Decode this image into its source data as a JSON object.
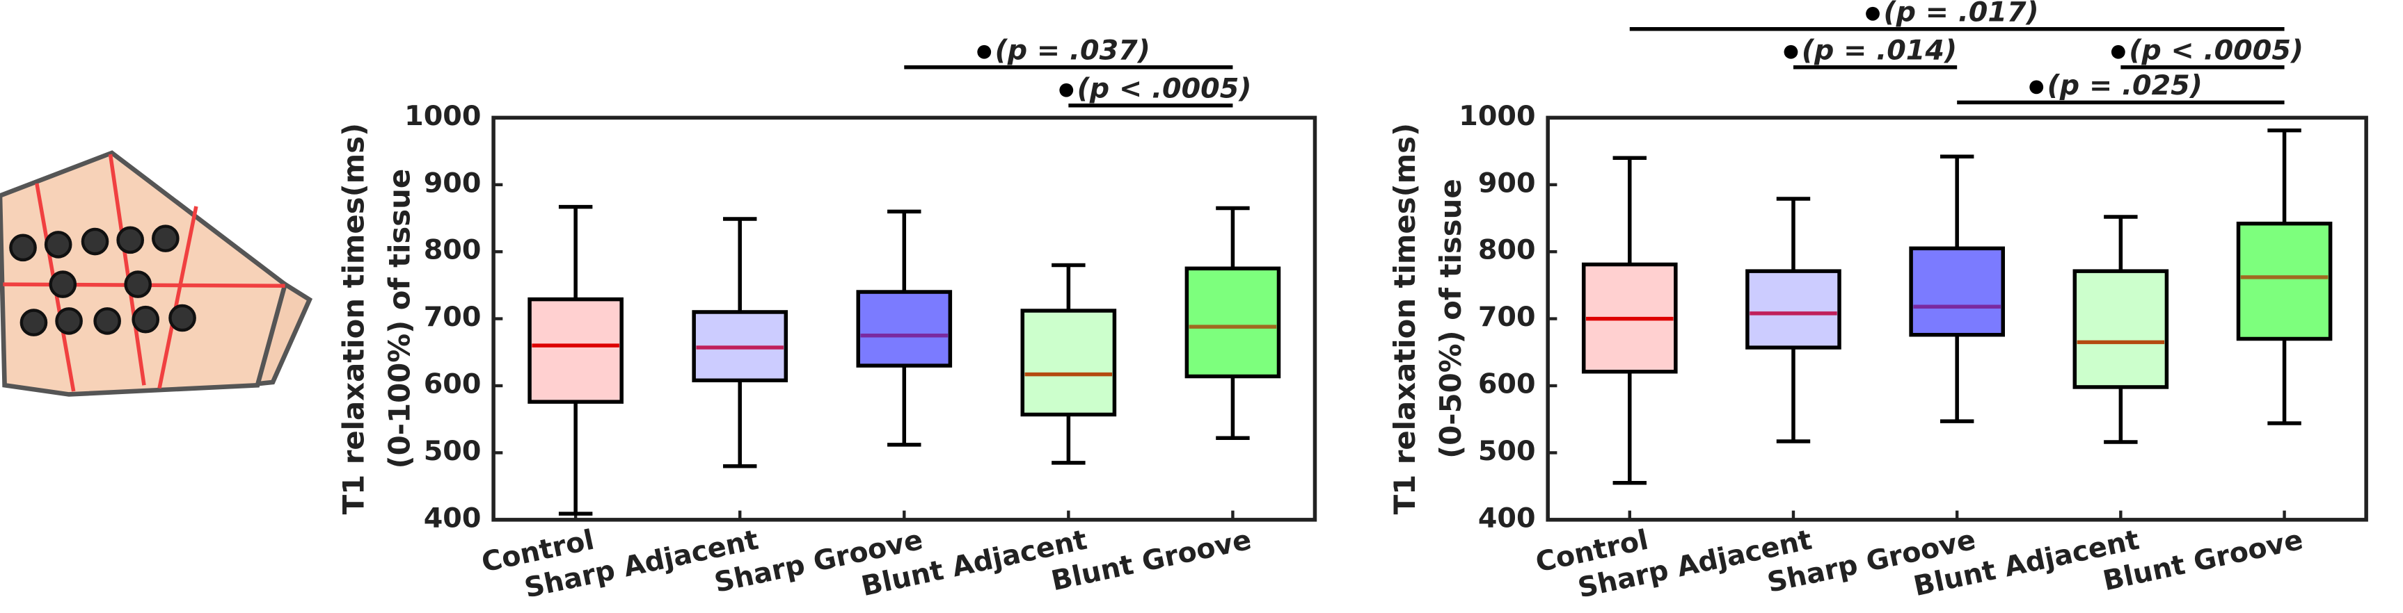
{
  "chart_data": [
    {
      "type": "box",
      "ylabel": [
        "T1 relaxation times(ms)",
        "(0-100%) of tissue"
      ],
      "categories": [
        "Control",
        "Sharp Adjacent",
        "Sharp Groove",
        "Blunt Adjacent",
        "Blunt Groove"
      ],
      "colors": [
        "#ffd0d0",
        "#ccccff",
        "#7b7bff",
        "#ccffcc",
        "#7dff7d"
      ],
      "median_colors": [
        "#dd0000",
        "#c0205a",
        "#7a2aa0",
        "#b44a10",
        "#a06a20"
      ],
      "boxes": [
        {
          "min": 409,
          "q1": 576,
          "median": 660,
          "q3": 729,
          "max": 867
        },
        {
          "min": 480,
          "q1": 608,
          "median": 657,
          "q3": 710,
          "max": 849
        },
        {
          "min": 512,
          "q1": 630,
          "median": 675,
          "q3": 740,
          "max": 860
        },
        {
          "min": 485,
          "q1": 557,
          "median": 617,
          "q3": 712,
          "max": 780
        },
        {
          "min": 522,
          "q1": 614,
          "median": 688,
          "q3": 775,
          "max": 865
        }
      ],
      "ylim": [
        400,
        1000
      ],
      "yticks": [
        400,
        500,
        600,
        700,
        800,
        900,
        1000
      ],
      "annotations": [
        "(p = .037)",
        "(p < .0005)"
      ]
    },
    {
      "type": "box",
      "ylabel": [
        "T1 relaxation times(ms)",
        "(0-50%) of tissue"
      ],
      "categories": [
        "Control",
        "Sharp Adjacent",
        "Sharp Groove",
        "Blunt Adjacent",
        "Blunt Groove"
      ],
      "colors": [
        "#ffd0d0",
        "#ccccff",
        "#7b7bff",
        "#ccffcc",
        "#7dff7d"
      ],
      "median_colors": [
        "#dd0000",
        "#c0205a",
        "#7a2aa0",
        "#b44a10",
        "#a06a20"
      ],
      "boxes": [
        {
          "min": 455,
          "q1": 621,
          "median": 700,
          "q3": 781,
          "max": 940
        },
        {
          "min": 517,
          "q1": 657,
          "median": 708,
          "q3": 771,
          "max": 879
        },
        {
          "min": 547,
          "q1": 676,
          "median": 718,
          "q3": 805,
          "max": 942
        },
        {
          "min": 516,
          "q1": 598,
          "median": 665,
          "q3": 771,
          "max": 852
        },
        {
          "min": 544,
          "q1": 670,
          "median": 762,
          "q3": 842,
          "max": 981
        }
      ],
      "ylim": [
        400,
        1000
      ],
      "yticks": [
        400,
        500,
        600,
        700,
        800,
        900,
        1000
      ],
      "annotations": [
        "(p = .017)",
        "(p = .014)",
        "(p < .0005)",
        "(p = .025)"
      ]
    }
  ]
}
